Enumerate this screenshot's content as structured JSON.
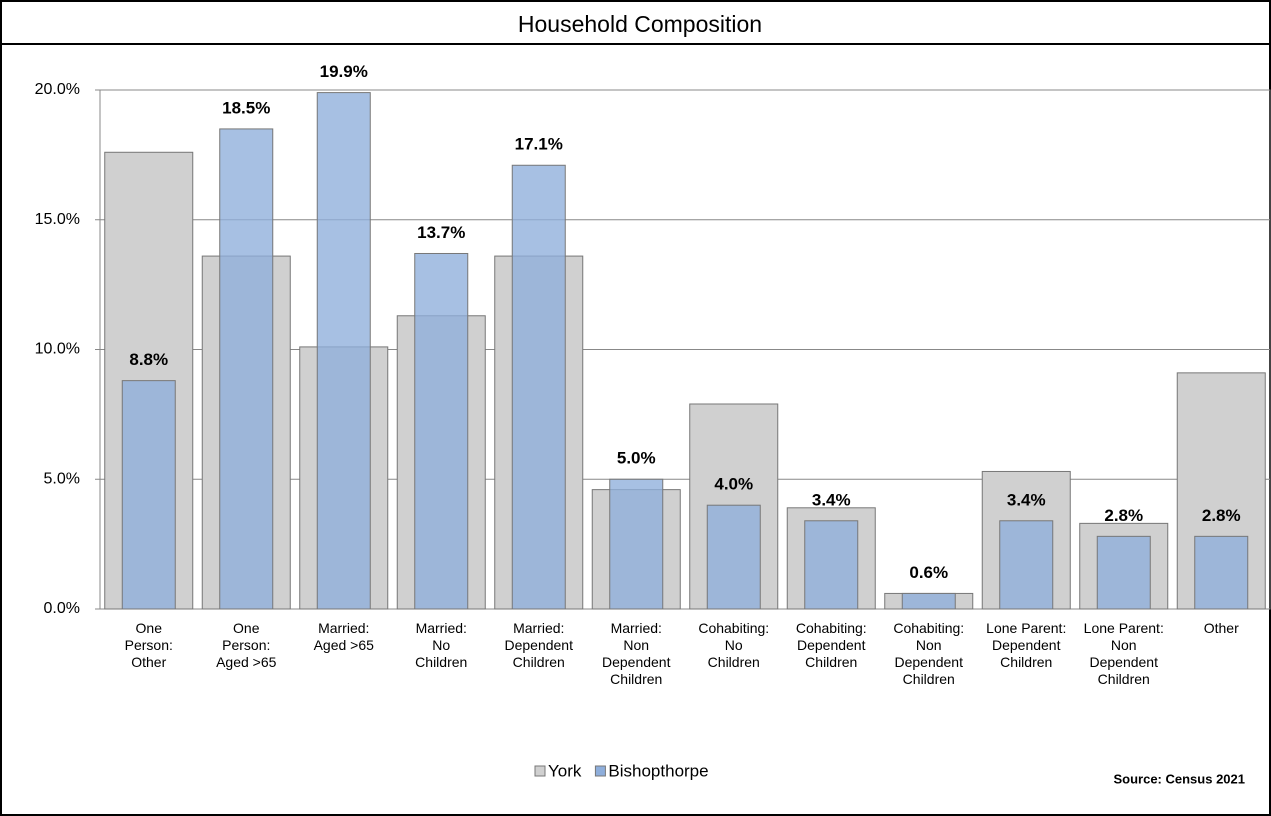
{
  "chart_data": {
    "type": "bar",
    "title": "Household Composition",
    "source": "Source: Census 2021",
    "categories": [
      "One\nPerson:\nOther",
      "One\nPerson:\nAged >65",
      "Married:\nAged >65",
      "Married:\nNo\nChildren",
      "Married:\nDependent\nChildren",
      "Married:\nNon\nDependent\nChildren",
      "Cohabiting:\nNo\nChildren",
      "Cohabiting:\nDependent\nChildren",
      "Cohabiting:\nNon\nDependent\nChildren",
      "Lone Parent:\nDependent\nChildren",
      "Lone Parent:\nNon\nDependent\nChildren",
      "Other"
    ],
    "series": [
      {
        "name": "York",
        "color": "#d0d0d0",
        "values": [
          17.6,
          13.6,
          10.1,
          11.3,
          13.6,
          4.6,
          7.9,
          3.9,
          0.6,
          5.3,
          3.3,
          9.1
        ]
      },
      {
        "name": "Bishopthorpe",
        "color": "#8eaedb",
        "values": [
          8.8,
          18.5,
          19.9,
          13.7,
          17.1,
          5.0,
          4.0,
          3.4,
          0.6,
          3.4,
          2.8,
          2.8
        ],
        "value_labels": [
          "8.8%",
          "18.5%",
          "19.9%",
          "13.7%",
          "17.1%",
          "5.0%",
          "4.0%",
          "3.4%",
          "0.6%",
          "3.4%",
          "2.8%",
          "2.8%"
        ]
      }
    ],
    "ylim": [
      0,
      20
    ],
    "yticks": [
      {
        "value": 0,
        "label": "0.0%"
      },
      {
        "value": 5,
        "label": "5.0%"
      },
      {
        "value": 10,
        "label": "10.0%"
      },
      {
        "value": 15,
        "label": "15.0%"
      },
      {
        "value": 20,
        "label": "20.0%"
      }
    ],
    "grid": true,
    "legend": "bottom"
  }
}
